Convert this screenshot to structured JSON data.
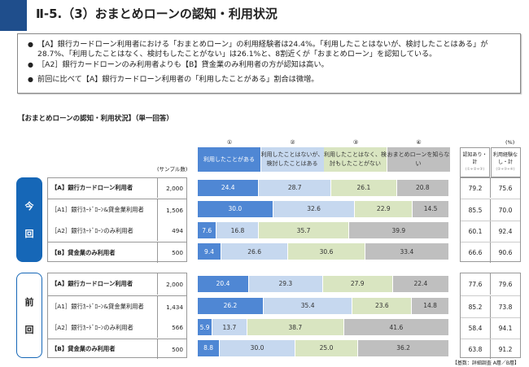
{
  "title": "Ⅱ-5.（3）おまとめローンの認知・利用状況",
  "summary": [
    "【A】銀行カードローン利用者における「おまとめローン」の利用経験者は24.4%。「利用したことはないが、検討したことはある」が28.7%、「利用したことはなく、検討もしたことがない」は26.1%と、8割近くが「おまとめローン」を認知している。",
    "［A2］銀行カードローンのみ利用者よりも【B】貸金業のみ利用者の方が認知は高い。",
    "前回に比べて【A】銀行カードローン利用者の「利用したことがある」割合は微増。"
  ],
  "chart_data": {
    "type": "bar",
    "stacked": true,
    "orientation": "horizontal",
    "title": "【おまとめローンの認知・利用状況】（単一回答）",
    "unit": "(%)",
    "sample_label": "(サンプル数)",
    "series": [
      {
        "num": "①",
        "name": "利用したことがある",
        "color": "#4f87d4"
      },
      {
        "num": "②",
        "name": "利用したことはないが、検討したことはある",
        "color": "#c6d8ef"
      },
      {
        "num": "③",
        "name": "利用したことはなく、検討もしたことがない",
        "color": "#d9e5c1"
      },
      {
        "num": "④",
        "name": "おまとめローンを知らない",
        "color": "#bfbfbf"
      }
    ],
    "summary_columns": [
      {
        "name": "認知あり・計",
        "formula": "(①+②+③)"
      },
      {
        "name": "利用経験なし・計",
        "formula": "(②+③+④)"
      }
    ],
    "groups": [
      {
        "label": [
          "今",
          "回"
        ],
        "rows": [
          {
            "name": "【A】銀行カードローン利用者",
            "bold": true,
            "n": "2,000",
            "values": [
              24.4,
              28.7,
              26.1,
              20.8
            ],
            "totals": [
              "79.2",
              "75.6"
            ]
          },
          {
            "name": "［A1］銀行ｶｰﾄﾞﾛｰﾝ&貸金業利用者",
            "bold": false,
            "n": "1,506",
            "values": [
              30.0,
              32.6,
              22.9,
              14.5
            ],
            "totals": [
              "85.5",
              "70.0"
            ]
          },
          {
            "name": "［A2］銀行ｶｰﾄﾞﾛｰﾝのみ利用者",
            "bold": false,
            "n": "494",
            "values": [
              7.6,
              16.8,
              35.7,
              39.9
            ],
            "totals": [
              "60.1",
              "92.4"
            ]
          },
          {
            "name": "【B】貸金業のみ利用者",
            "bold": true,
            "n": "500",
            "values": [
              9.4,
              26.6,
              30.6,
              33.4
            ],
            "totals": [
              "66.6",
              "90.6"
            ]
          }
        ]
      },
      {
        "label": [
          "前",
          "回"
        ],
        "rows": [
          {
            "name": "【A】銀行カードローン利用者",
            "bold": true,
            "n": "2,000",
            "values": [
              20.4,
              29.3,
              27.9,
              22.4
            ],
            "totals": [
              "77.6",
              "79.6"
            ]
          },
          {
            "name": "［A1］銀行ｶｰﾄﾞﾛｰﾝ&貸金業利用者",
            "bold": false,
            "n": "1,434",
            "values": [
              26.2,
              35.4,
              23.6,
              14.8
            ],
            "totals": [
              "85.2",
              "73.8"
            ]
          },
          {
            "name": "［A2］銀行ｶｰﾄﾞﾛｰﾝのみ利用者",
            "bold": false,
            "n": "566",
            "values": [
              5.9,
              13.7,
              38.7,
              41.6
            ],
            "totals": [
              "58.4",
              "94.1"
            ]
          },
          {
            "name": "【B】貸金業のみ利用者",
            "bold": true,
            "n": "500",
            "values": [
              8.8,
              30.0,
              25.0,
              36.2
            ],
            "totals": [
              "63.8",
              "91.2"
            ]
          }
        ]
      }
    ],
    "footnote": "【基数：詳細調査 A層／B層】"
  }
}
